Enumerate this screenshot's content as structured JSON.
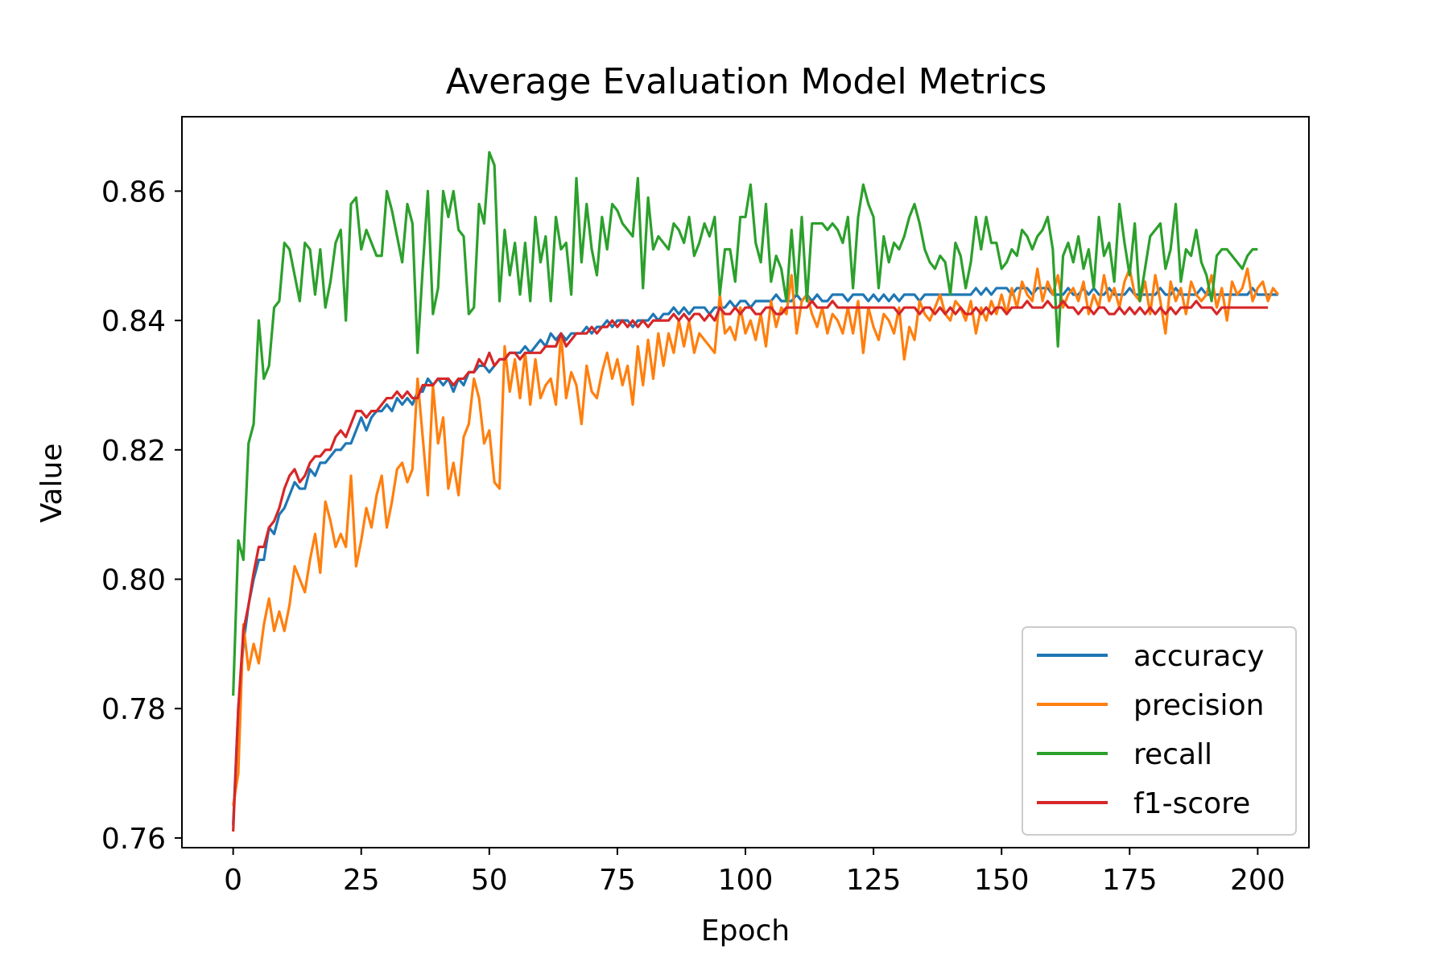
{
  "chart_data": {
    "type": "line",
    "title": "Average Evaluation Model Metrics",
    "xlabel": "Epoch",
    "ylabel": "Value",
    "xlim": [
      -10,
      210
    ],
    "ylim": [
      0.7585,
      0.8715
    ],
    "xticks": [
      0,
      25,
      50,
      75,
      100,
      125,
      150,
      175,
      200
    ],
    "yticks": [
      0.76,
      0.78,
      0.8,
      0.82,
      0.84,
      0.86
    ],
    "xtick_labels": [
      "0",
      "25",
      "50",
      "75",
      "100",
      "125",
      "150",
      "175",
      "200"
    ],
    "ytick_labels": [
      "0.76",
      "0.78",
      "0.80",
      "0.82",
      "0.84",
      "0.86"
    ],
    "grid": false,
    "legend_position": "lower-right",
    "x_step": 1,
    "x_start": 0,
    "series": [
      {
        "name": "accuracy",
        "color": "#1f77b4",
        "values": [
          0.762,
          0.78,
          0.79,
          0.796,
          0.8,
          0.803,
          0.803,
          0.808,
          0.807,
          0.81,
          0.811,
          0.813,
          0.815,
          0.814,
          0.814,
          0.817,
          0.816,
          0.818,
          0.818,
          0.819,
          0.82,
          0.82,
          0.821,
          0.821,
          0.823,
          0.825,
          0.823,
          0.825,
          0.826,
          0.826,
          0.827,
          0.826,
          0.828,
          0.827,
          0.828,
          0.827,
          0.829,
          0.829,
          0.831,
          0.83,
          0.831,
          0.83,
          0.831,
          0.829,
          0.831,
          0.83,
          0.832,
          0.832,
          0.833,
          0.833,
          0.832,
          0.833,
          0.834,
          0.834,
          0.835,
          0.835,
          0.835,
          0.836,
          0.835,
          0.836,
          0.837,
          0.836,
          0.838,
          0.837,
          0.838,
          0.837,
          0.838,
          0.838,
          0.838,
          0.839,
          0.838,
          0.839,
          0.839,
          0.84,
          0.839,
          0.84,
          0.84,
          0.84,
          0.839,
          0.84,
          0.84,
          0.84,
          0.841,
          0.84,
          0.841,
          0.841,
          0.842,
          0.841,
          0.842,
          0.841,
          0.842,
          0.842,
          0.842,
          0.841,
          0.842,
          0.842,
          0.842,
          0.843,
          0.842,
          0.843,
          0.843,
          0.842,
          0.843,
          0.843,
          0.843,
          0.843,
          0.844,
          0.843,
          0.843,
          0.843,
          0.844,
          0.843,
          0.844,
          0.843,
          0.844,
          0.843,
          0.843,
          0.844,
          0.844,
          0.844,
          0.843,
          0.844,
          0.844,
          0.844,
          0.843,
          0.844,
          0.843,
          0.844,
          0.843,
          0.844,
          0.843,
          0.844,
          0.844,
          0.844,
          0.843,
          0.844,
          0.844,
          0.844,
          0.844,
          0.844,
          0.844,
          0.844,
          0.844,
          0.844,
          0.844,
          0.845,
          0.844,
          0.845,
          0.844,
          0.845,
          0.845,
          0.845,
          0.844,
          0.845,
          0.845,
          0.845,
          0.844,
          0.845,
          0.845,
          0.845,
          0.844,
          0.844,
          0.844,
          0.845,
          0.844,
          0.844,
          0.845,
          0.844,
          0.845,
          0.844,
          0.844,
          0.845,
          0.844,
          0.844,
          0.844,
          0.845,
          0.844,
          0.844,
          0.844,
          0.844,
          0.844,
          0.845,
          0.844,
          0.844,
          0.845,
          0.844,
          0.844,
          0.844,
          0.844,
          0.845,
          0.844,
          0.844,
          0.844,
          0.844,
          0.844,
          0.844,
          0.844,
          0.844,
          0.844,
          0.845,
          0.844,
          0.844,
          0.844,
          0.844,
          0.844
        ]
      },
      {
        "name": "precision",
        "color": "#ff7f0e",
        "values": [
          0.765,
          0.77,
          0.793,
          0.786,
          0.79,
          0.787,
          0.793,
          0.797,
          0.792,
          0.795,
          0.792,
          0.796,
          0.802,
          0.8,
          0.798,
          0.803,
          0.807,
          0.801,
          0.812,
          0.809,
          0.805,
          0.807,
          0.805,
          0.816,
          0.802,
          0.806,
          0.811,
          0.808,
          0.813,
          0.816,
          0.808,
          0.812,
          0.817,
          0.818,
          0.815,
          0.817,
          0.831,
          0.822,
          0.813,
          0.83,
          0.821,
          0.825,
          0.814,
          0.818,
          0.813,
          0.822,
          0.824,
          0.831,
          0.828,
          0.821,
          0.823,
          0.815,
          0.814,
          0.836,
          0.829,
          0.834,
          0.828,
          0.835,
          0.827,
          0.834,
          0.828,
          0.83,
          0.831,
          0.827,
          0.838,
          0.828,
          0.832,
          0.83,
          0.824,
          0.833,
          0.829,
          0.828,
          0.832,
          0.835,
          0.831,
          0.834,
          0.83,
          0.833,
          0.827,
          0.836,
          0.83,
          0.837,
          0.831,
          0.838,
          0.833,
          0.838,
          0.835,
          0.84,
          0.836,
          0.84,
          0.835,
          0.838,
          0.837,
          0.836,
          0.835,
          0.844,
          0.838,
          0.839,
          0.837,
          0.842,
          0.838,
          0.84,
          0.837,
          0.841,
          0.836,
          0.843,
          0.839,
          0.842,
          0.841,
          0.847,
          0.838,
          0.843,
          0.844,
          0.841,
          0.839,
          0.842,
          0.838,
          0.841,
          0.84,
          0.838,
          0.842,
          0.838,
          0.843,
          0.835,
          0.842,
          0.839,
          0.837,
          0.841,
          0.84,
          0.838,
          0.842,
          0.834,
          0.839,
          0.837,
          0.843,
          0.841,
          0.84,
          0.842,
          0.844,
          0.841,
          0.84,
          0.843,
          0.842,
          0.84,
          0.843,
          0.838,
          0.842,
          0.84,
          0.843,
          0.841,
          0.844,
          0.841,
          0.845,
          0.842,
          0.846,
          0.844,
          0.843,
          0.848,
          0.843,
          0.846,
          0.844,
          0.847,
          0.842,
          0.844,
          0.845,
          0.843,
          0.846,
          0.841,
          0.844,
          0.842,
          0.847,
          0.843,
          0.845,
          0.842,
          0.846,
          0.848,
          0.844,
          0.843,
          0.846,
          0.841,
          0.847,
          0.843,
          0.838,
          0.846,
          0.843,
          0.845,
          0.841,
          0.846,
          0.844,
          0.843,
          0.844,
          0.847,
          0.842,
          0.845,
          0.84,
          0.846,
          0.844,
          0.845,
          0.848,
          0.843,
          0.845,
          0.846,
          0.843,
          0.845,
          0.844
        ]
      },
      {
        "name": "recall",
        "color": "#2ca02c",
        "values": [
          0.782,
          0.806,
          0.803,
          0.821,
          0.824,
          0.84,
          0.831,
          0.833,
          0.842,
          0.843,
          0.852,
          0.851,
          0.847,
          0.843,
          0.852,
          0.851,
          0.844,
          0.851,
          0.842,
          0.846,
          0.852,
          0.854,
          0.84,
          0.858,
          0.859,
          0.851,
          0.854,
          0.852,
          0.85,
          0.85,
          0.86,
          0.857,
          0.853,
          0.849,
          0.858,
          0.855,
          0.835,
          0.848,
          0.86,
          0.841,
          0.845,
          0.86,
          0.856,
          0.86,
          0.854,
          0.853,
          0.841,
          0.842,
          0.858,
          0.855,
          0.866,
          0.864,
          0.843,
          0.854,
          0.847,
          0.852,
          0.844,
          0.852,
          0.843,
          0.856,
          0.849,
          0.853,
          0.843,
          0.856,
          0.851,
          0.852,
          0.844,
          0.862,
          0.849,
          0.858,
          0.851,
          0.847,
          0.856,
          0.851,
          0.858,
          0.857,
          0.855,
          0.854,
          0.853,
          0.862,
          0.845,
          0.859,
          0.851,
          0.853,
          0.852,
          0.851,
          0.855,
          0.854,
          0.852,
          0.856,
          0.85,
          0.852,
          0.855,
          0.853,
          0.856,
          0.844,
          0.851,
          0.851,
          0.846,
          0.856,
          0.856,
          0.861,
          0.852,
          0.849,
          0.858,
          0.846,
          0.85,
          0.848,
          0.843,
          0.854,
          0.844,
          0.856,
          0.843,
          0.855,
          0.855,
          0.855,
          0.854,
          0.855,
          0.854,
          0.852,
          0.856,
          0.845,
          0.856,
          0.861,
          0.858,
          0.856,
          0.845,
          0.853,
          0.849,
          0.852,
          0.851,
          0.853,
          0.856,
          0.858,
          0.855,
          0.851,
          0.849,
          0.848,
          0.85,
          0.849,
          0.844,
          0.852,
          0.85,
          0.845,
          0.849,
          0.856,
          0.851,
          0.856,
          0.852,
          0.852,
          0.848,
          0.849,
          0.851,
          0.85,
          0.854,
          0.853,
          0.851,
          0.853,
          0.854,
          0.856,
          0.851,
          0.836,
          0.85,
          0.852,
          0.849,
          0.853,
          0.848,
          0.851,
          0.845,
          0.856,
          0.85,
          0.852,
          0.846,
          0.858,
          0.852,
          0.847,
          0.855,
          0.843,
          0.848,
          0.853,
          0.854,
          0.855,
          0.848,
          0.851,
          0.858,
          0.846,
          0.851,
          0.85,
          0.854,
          0.849,
          0.847,
          0.843,
          0.85,
          0.851,
          0.851,
          0.85,
          0.849,
          0.848,
          0.85,
          0.851,
          0.851
        ]
      },
      {
        "name": "f1-score",
        "color": "#d62728",
        "values": [
          0.761,
          0.78,
          0.792,
          0.796,
          0.801,
          0.805,
          0.805,
          0.808,
          0.809,
          0.811,
          0.814,
          0.816,
          0.817,
          0.815,
          0.816,
          0.818,
          0.819,
          0.819,
          0.82,
          0.82,
          0.822,
          0.823,
          0.822,
          0.824,
          0.826,
          0.826,
          0.825,
          0.826,
          0.826,
          0.827,
          0.828,
          0.828,
          0.829,
          0.828,
          0.829,
          0.828,
          0.828,
          0.83,
          0.83,
          0.83,
          0.831,
          0.831,
          0.831,
          0.83,
          0.831,
          0.831,
          0.832,
          0.832,
          0.834,
          0.833,
          0.835,
          0.833,
          0.834,
          0.834,
          0.835,
          0.835,
          0.834,
          0.835,
          0.835,
          0.835,
          0.835,
          0.836,
          0.836,
          0.836,
          0.838,
          0.836,
          0.837,
          0.838,
          0.838,
          0.838,
          0.839,
          0.838,
          0.839,
          0.839,
          0.84,
          0.839,
          0.84,
          0.839,
          0.84,
          0.839,
          0.84,
          0.839,
          0.84,
          0.84,
          0.84,
          0.84,
          0.841,
          0.84,
          0.841,
          0.84,
          0.841,
          0.841,
          0.84,
          0.841,
          0.84,
          0.842,
          0.841,
          0.841,
          0.842,
          0.841,
          0.842,
          0.842,
          0.841,
          0.841,
          0.842,
          0.842,
          0.841,
          0.841,
          0.842,
          0.842,
          0.842,
          0.842,
          0.842,
          0.843,
          0.842,
          0.842,
          0.842,
          0.843,
          0.842,
          0.842,
          0.842,
          0.842,
          0.842,
          0.842,
          0.842,
          0.842,
          0.842,
          0.842,
          0.842,
          0.842,
          0.841,
          0.842,
          0.842,
          0.842,
          0.841,
          0.842,
          0.842,
          0.841,
          0.842,
          0.841,
          0.842,
          0.841,
          0.842,
          0.841,
          0.841,
          0.842,
          0.841,
          0.842,
          0.841,
          0.842,
          0.842,
          0.841,
          0.842,
          0.842,
          0.842,
          0.843,
          0.842,
          0.842,
          0.842,
          0.843,
          0.842,
          0.842,
          0.843,
          0.842,
          0.842,
          0.841,
          0.842,
          0.842,
          0.841,
          0.842,
          0.842,
          0.841,
          0.841,
          0.842,
          0.841,
          0.842,
          0.841,
          0.842,
          0.841,
          0.842,
          0.841,
          0.842,
          0.841,
          0.842,
          0.841,
          0.842,
          0.842,
          0.842,
          0.843,
          0.842,
          0.842,
          0.842,
          0.841,
          0.842,
          0.842,
          0.842,
          0.842,
          0.842,
          0.842,
          0.842,
          0.842,
          0.842,
          0.842
        ]
      }
    ]
  }
}
